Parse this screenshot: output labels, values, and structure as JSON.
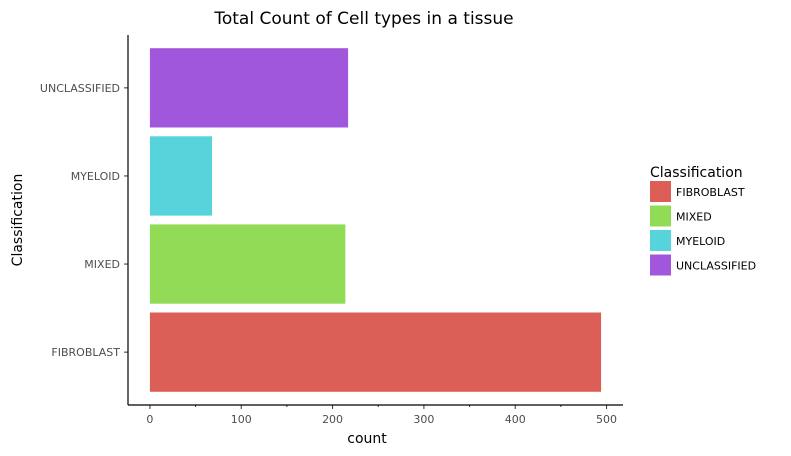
{
  "chart_data": {
    "type": "bar",
    "orientation": "horizontal",
    "title": "Total Count of Cell types in a tissue",
    "xlabel": "count",
    "ylabel": "Classification",
    "categories": [
      "FIBROBLAST",
      "MIXED",
      "MYELOID",
      "UNCLASSIFIED"
    ],
    "values": [
      494,
      214,
      68,
      217
    ],
    "colors": [
      "#db5f57",
      "#91db57",
      "#57d3db",
      "#a157db"
    ],
    "xlim": [
      -24,
      518
    ],
    "xticks": [
      0,
      100,
      200,
      300,
      400,
      500
    ],
    "grid": false,
    "legend": {
      "title": "Classification",
      "entries": [
        "FIBROBLAST",
        "MIXED",
        "MYELOID",
        "UNCLASSIFIED"
      ],
      "placement": "right"
    }
  }
}
